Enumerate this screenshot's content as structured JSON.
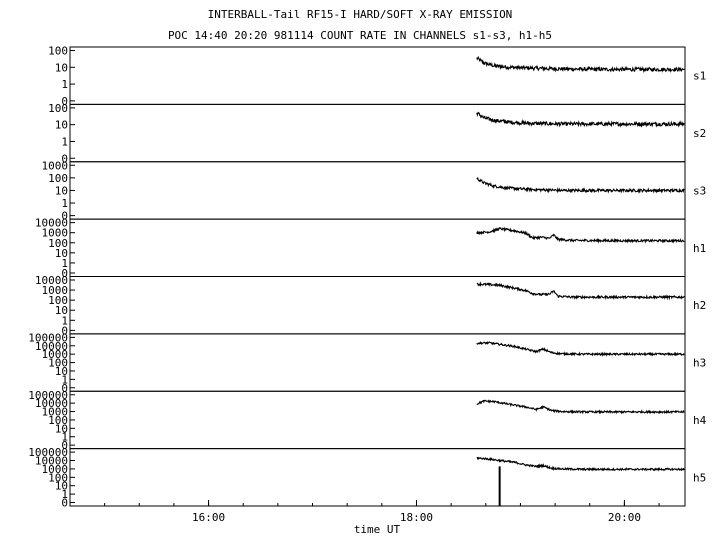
{
  "chart_data": {
    "type": "line",
    "title": "INTERBALL-Tail RF15-I HARD/SOFT X-RAY EMISSION",
    "subtitle": "POC 14:40 20:20 981114  COUNT RATE IN CHANNELS s1-s3, h1-h5",
    "xlabel": "time UT",
    "x_tick_labels": [
      "16:00",
      "18:00",
      "20:00"
    ],
    "x_ticks_hours": [
      16,
      18,
      20
    ],
    "xlim_hours": [
      14.667,
      20.583
    ],
    "data_start_hours": 18.583,
    "grid": false,
    "panels": [
      {
        "name": "s1",
        "yscale": "log",
        "ylim": [
          0,
          100
        ],
        "tick_labels": [
          "100",
          "10",
          "1",
          "0"
        ],
        "x_hours": [
          18.58,
          18.65,
          18.75,
          18.9,
          19.1,
          19.4,
          19.8,
          20.2,
          20.58
        ],
        "values": [
          35,
          18,
          12,
          10,
          9,
          8,
          7.5,
          7.5,
          7.5
        ]
      },
      {
        "name": "s2",
        "yscale": "log",
        "ylim": [
          0,
          100
        ],
        "tick_labels": [
          "100",
          "10",
          "1",
          "0"
        ],
        "x_hours": [
          18.58,
          18.65,
          18.75,
          18.9,
          19.1,
          19.4,
          19.8,
          20.2,
          20.58
        ],
        "values": [
          50,
          25,
          18,
          14,
          12,
          11,
          11,
          11,
          11
        ]
      },
      {
        "name": "s3",
        "yscale": "log",
        "ylim": [
          0,
          1000
        ],
        "tick_labels": [
          "1000",
          "100",
          "10",
          "1",
          "0"
        ],
        "x_hours": [
          18.58,
          18.65,
          18.75,
          18.9,
          19.1,
          19.4,
          19.8,
          20.2,
          20.58
        ],
        "values": [
          90,
          40,
          22,
          15,
          12,
          10,
          10,
          10,
          10
        ]
      },
      {
        "name": "h1",
        "yscale": "log",
        "ylim": [
          0,
          10000
        ],
        "tick_labels": [
          "10000",
          "1000",
          "100",
          "10",
          "1",
          "0"
        ],
        "x_hours": [
          18.58,
          18.7,
          18.8,
          18.95,
          19.05,
          19.12,
          19.2,
          19.28,
          19.32,
          19.36,
          19.5,
          20.0,
          20.58
        ],
        "values": [
          1000,
          1200,
          2500,
          1500,
          900,
          300,
          350,
          280,
          600,
          220,
          170,
          160,
          160
        ]
      },
      {
        "name": "h2",
        "yscale": "log",
        "ylim": [
          0,
          10000
        ],
        "tick_labels": [
          "10000",
          "1000",
          "100",
          "10",
          "1",
          "0"
        ],
        "x_hours": [
          18.58,
          18.7,
          18.8,
          18.95,
          19.05,
          19.12,
          19.2,
          19.28,
          19.32,
          19.36,
          19.5,
          20.0,
          20.58
        ],
        "values": [
          4000,
          3500,
          3000,
          1500,
          900,
          450,
          350,
          400,
          800,
          250,
          200,
          200,
          200
        ]
      },
      {
        "name": "h3",
        "yscale": "log",
        "ylim": [
          0,
          100000
        ],
        "tick_labels": [
          "100000",
          "10000",
          "1000",
          "100",
          "10",
          "1",
          "0"
        ],
        "x_hours": [
          18.58,
          18.7,
          18.8,
          18.95,
          19.05,
          19.15,
          19.22,
          19.3,
          19.4,
          19.6,
          20.0,
          20.58
        ],
        "values": [
          20000,
          22000,
          15000,
          8000,
          4000,
          2000,
          4000,
          1500,
          1100,
          1000,
          1000,
          1000
        ]
      },
      {
        "name": "h4",
        "yscale": "log",
        "ylim": [
          0,
          100000
        ],
        "tick_labels": [
          "100000",
          "10000",
          "1000",
          "100",
          "10",
          "1",
          "0"
        ],
        "x_hours": [
          18.58,
          18.65,
          18.75,
          18.9,
          19.05,
          19.15,
          19.22,
          19.3,
          19.4,
          19.6,
          20.0,
          20.58
        ],
        "values": [
          8000,
          18000,
          15000,
          7000,
          3500,
          1800,
          3500,
          1300,
          1000,
          900,
          900,
          900
        ]
      },
      {
        "name": "h5",
        "yscale": "log",
        "ylim": [
          0,
          100000
        ],
        "tick_labels": [
          "100000",
          "10000",
          "1000",
          "100",
          "10",
          "1",
          "0"
        ],
        "x_hours": [
          18.58,
          18.7,
          18.8,
          18.95,
          19.05,
          19.15,
          19.22,
          19.3,
          19.4,
          19.6,
          20.0,
          20.58
        ],
        "values": [
          20000,
          15000,
          10000,
          6000,
          3000,
          2000,
          2500,
          1200,
          1000,
          900,
          900,
          900
        ],
        "spike": {
          "x_hours": 18.8,
          "value": 0
        }
      }
    ]
  }
}
